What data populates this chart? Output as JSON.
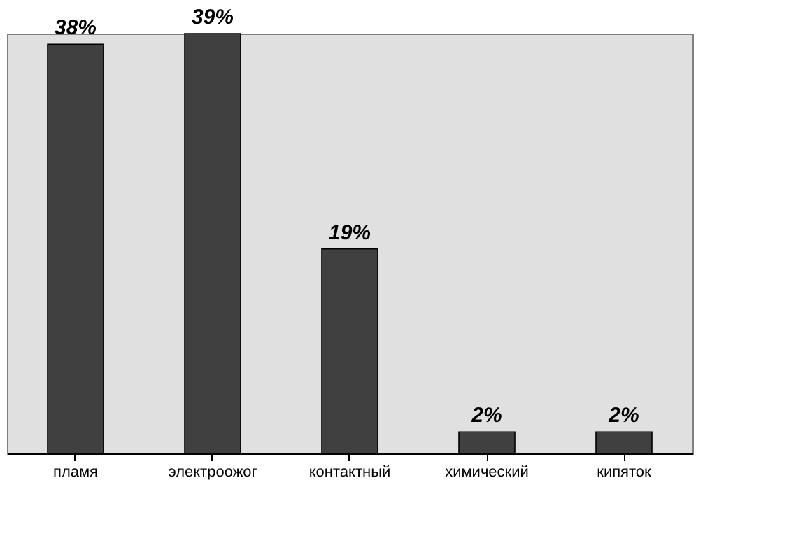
{
  "chart_data": {
    "type": "bar",
    "categories": [
      "пламя",
      "электроожог",
      "контактный",
      "химический",
      "кипяток"
    ],
    "values": [
      38,
      39,
      19,
      2,
      2
    ],
    "value_labels": [
      "38%",
      "39%",
      "19%",
      "2%",
      "2%"
    ],
    "color": "#404040",
    "grid": false
  }
}
